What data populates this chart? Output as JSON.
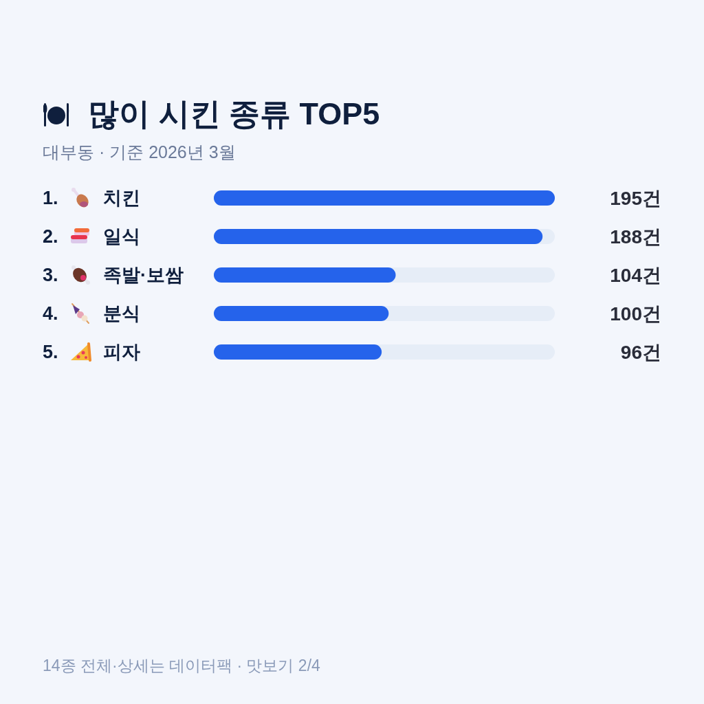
{
  "chart_data": {
    "type": "bar",
    "orientation": "horizontal",
    "title": "많이 시킨 종류 TOP5",
    "subtitle": "대부동 · 기준 2026년 3월",
    "categories": [
      "1. 치킨",
      "2. 일식",
      "3. 족발·보쌈",
      "4. 분식",
      "5. 피자"
    ],
    "values": [
      195,
      188,
      104,
      100,
      96
    ],
    "color": "#2563eb",
    "value_labels": [
      "195건",
      "188건",
      "104건",
      "100건",
      "96건"
    ],
    "tick_labels": "y",
    "annotations": [
      "14종 전체·상세는 데이터팩 · 맛보기 2/4"
    ]
  }
}
